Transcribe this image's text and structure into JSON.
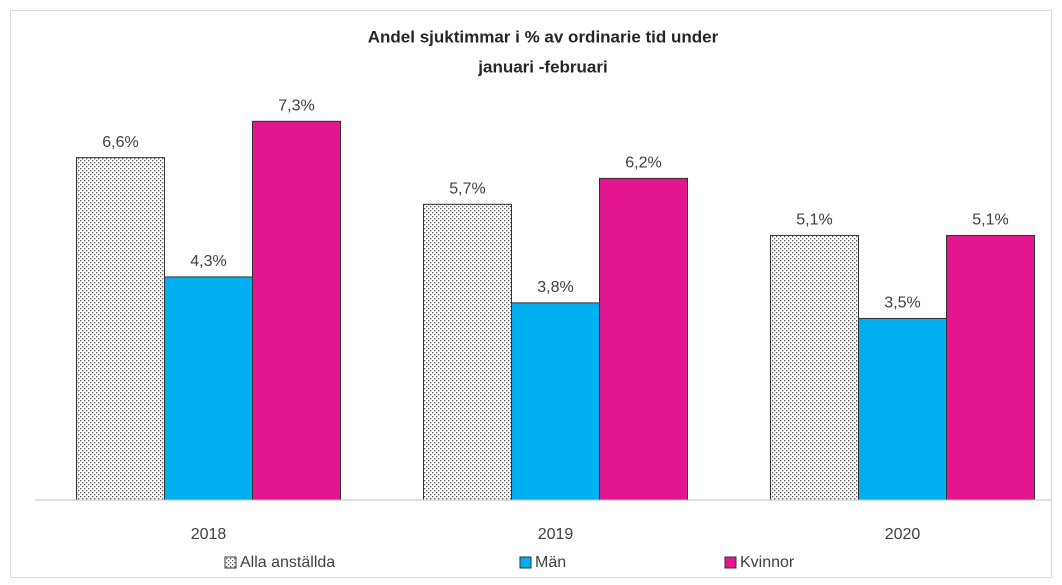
{
  "chart_data": {
    "type": "bar",
    "title": [
      "Andel sjuktimmar  i % av ordinarie tid under",
      "januari  -februari"
    ],
    "categories": [
      "2018",
      "2019",
      "2020"
    ],
    "series": [
      {
        "name": "Alla anställda",
        "color": "#ffffff",
        "pattern": "dotted",
        "values": [
          6.6,
          5.7,
          5.1
        ],
        "value_labels": [
          "6,6%",
          "5,7%",
          "5,1%"
        ]
      },
      {
        "name": "Män",
        "color": "#00b0f0",
        "values": [
          4.3,
          3.8,
          3.5
        ],
        "value_labels": [
          "4,3%",
          "3,8%",
          "3,5%"
        ]
      },
      {
        "name": "Kvinnor",
        "color": "#e3168f",
        "values": [
          7.3,
          6.2,
          5.1
        ],
        "value_labels": [
          "7,3%",
          "6,2%",
          "5,1%"
        ]
      }
    ],
    "ylim": [
      0,
      8
    ],
    "legend": "bottom"
  }
}
